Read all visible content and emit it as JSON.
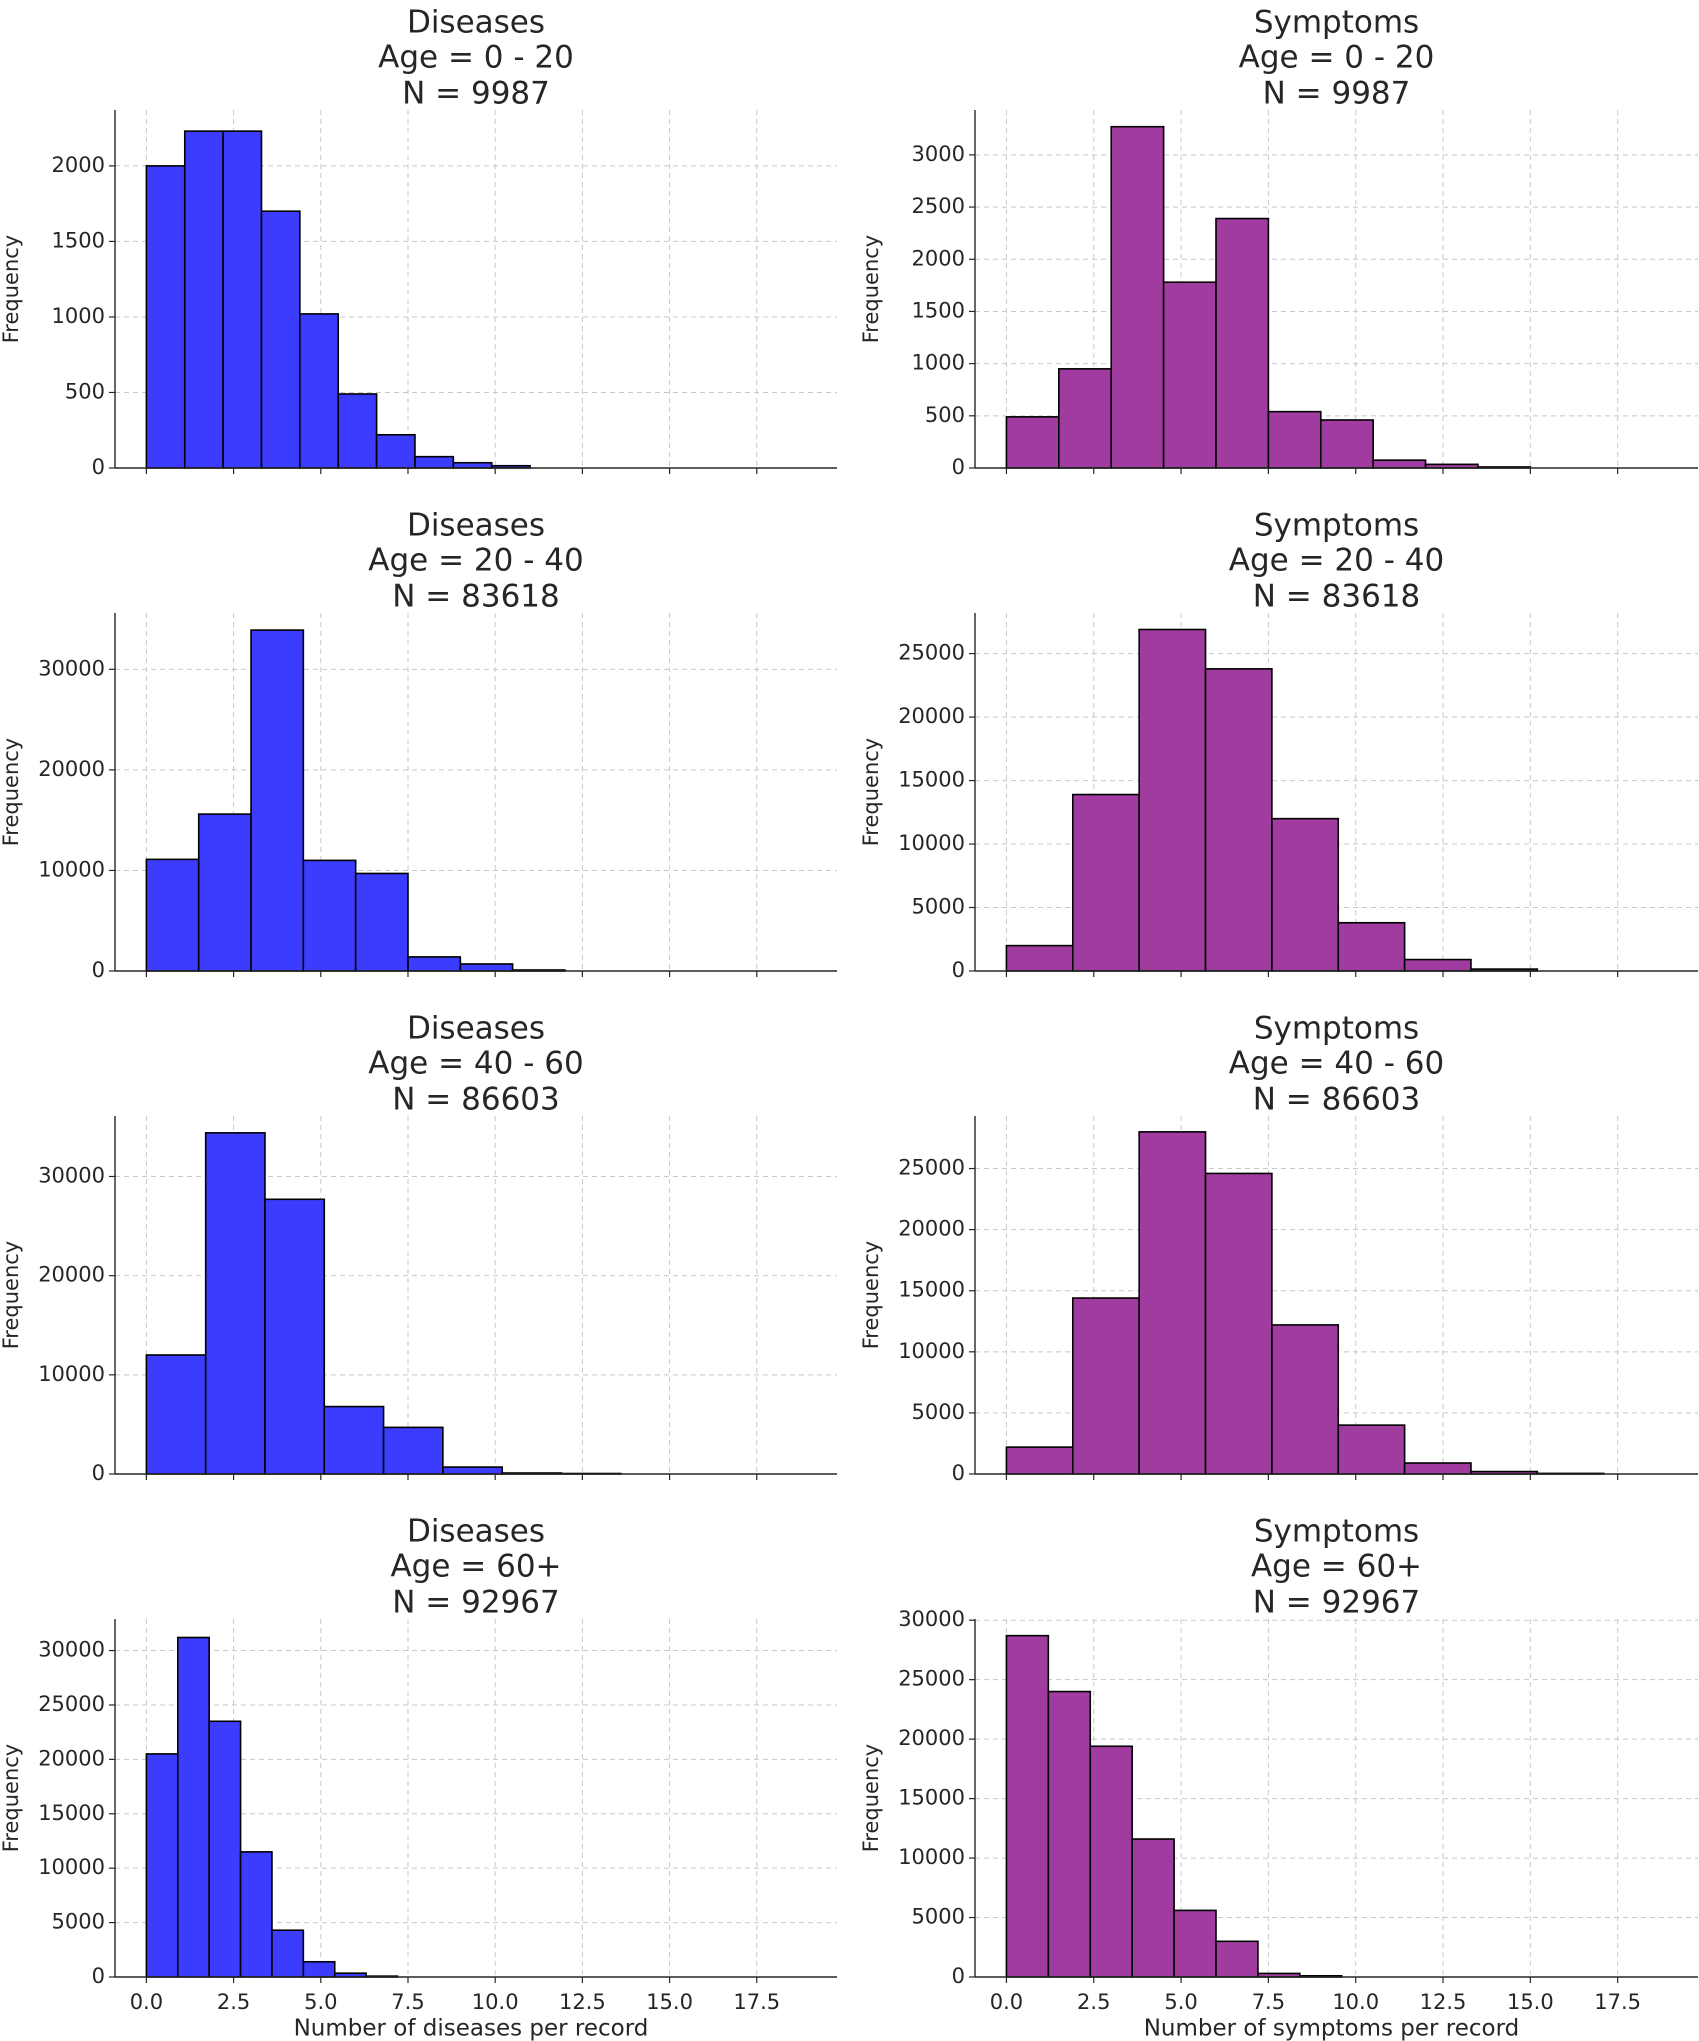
{
  "chart_data": [
    {
      "type": "bar",
      "title": [
        "Diseases",
        "Age = 0 - 20",
        "N = 9987"
      ],
      "xlabel": "",
      "ylabel": "Frequency",
      "color": "#3c3cff",
      "bin_edges": [
        0,
        1.1,
        2.2,
        3.3,
        4.4,
        5.5,
        6.6,
        7.7,
        8.8,
        9.9,
        11.0
      ],
      "values": [
        2000,
        2230,
        2230,
        1700,
        1020,
        490,
        220,
        75,
        35,
        15
      ],
      "xlim": [
        -0.9,
        19.8
      ],
      "ylim": [
        0,
        2370
      ],
      "yticks": [
        0,
        500,
        1000,
        1500,
        2000
      ],
      "xticks": [
        0.0,
        2.5,
        5.0,
        7.5,
        10.0,
        12.5,
        15.0,
        17.5
      ],
      "show_xticklabels": false,
      "grid": true
    },
    {
      "type": "bar",
      "title": [
        "Symptoms",
        "Age = 0 - 20",
        "N = 9987"
      ],
      "xlabel": "",
      "ylabel": "Frequency",
      "color": "#a03ca0",
      "bin_edges": [
        0,
        1.5,
        3.0,
        4.5,
        6.0,
        7.5,
        9.0,
        10.5,
        12.0,
        13.5,
        15.0
      ],
      "values": [
        490,
        950,
        3270,
        1780,
        2390,
        540,
        460,
        75,
        35,
        10
      ],
      "xlim": [
        -0.9,
        19.8
      ],
      "ylim": [
        0,
        3430
      ],
      "yticks": [
        0,
        500,
        1000,
        1500,
        2000,
        2500,
        3000
      ],
      "xticks": [
        0.0,
        2.5,
        5.0,
        7.5,
        10.0,
        12.5,
        15.0,
        17.5
      ],
      "show_xticklabels": false,
      "grid": true
    },
    {
      "type": "bar",
      "title": [
        "Diseases",
        "Age = 20 - 40",
        "N = 83618"
      ],
      "xlabel": "",
      "ylabel": "Frequency",
      "color": "#3c3cff",
      "bin_edges": [
        0,
        1.5,
        3.0,
        4.5,
        6.0,
        7.5,
        9.0,
        10.5,
        12.0
      ],
      "values": [
        11100,
        15600,
        33900,
        11000,
        9700,
        1400,
        700,
        100
      ],
      "xlim": [
        -0.9,
        19.8
      ],
      "ylim": [
        0,
        35600
      ],
      "yticks": [
        0,
        10000,
        20000,
        30000
      ],
      "xticks": [
        0.0,
        2.5,
        5.0,
        7.5,
        10.0,
        12.5,
        15.0,
        17.5
      ],
      "show_xticklabels": false,
      "grid": true
    },
    {
      "type": "bar",
      "title": [
        "Symptoms",
        "Age = 20 - 40",
        "N = 83618"
      ],
      "xlabel": "",
      "ylabel": "Frequency",
      "color": "#a03ca0",
      "bin_edges": [
        0,
        1.9,
        3.8,
        5.7,
        7.6,
        9.5,
        11.4,
        13.3,
        15.2
      ],
      "values": [
        2000,
        13900,
        26900,
        23800,
        12000,
        3800,
        900,
        150
      ],
      "xlim": [
        -0.9,
        19.8
      ],
      "ylim": [
        0,
        28200
      ],
      "yticks": [
        0,
        5000,
        10000,
        15000,
        20000,
        25000
      ],
      "xticks": [
        0.0,
        2.5,
        5.0,
        7.5,
        10.0,
        12.5,
        15.0,
        17.5
      ],
      "show_xticklabels": false,
      "grid": true
    },
    {
      "type": "bar",
      "title": [
        "Diseases",
        "Age = 40 - 60",
        "N = 86603"
      ],
      "xlabel": "",
      "ylabel": "Frequency",
      "color": "#3c3cff",
      "bin_edges": [
        0,
        1.7,
        3.4,
        5.1,
        6.8,
        8.5,
        10.2,
        11.9,
        13.6
      ],
      "values": [
        12000,
        34400,
        27700,
        6800,
        4700,
        700,
        100,
        50
      ],
      "xlim": [
        -0.9,
        19.8
      ],
      "ylim": [
        0,
        36100
      ],
      "yticks": [
        0,
        10000,
        20000,
        30000
      ],
      "xticks": [
        0.0,
        2.5,
        5.0,
        7.5,
        10.0,
        12.5,
        15.0,
        17.5
      ],
      "show_xticklabels": false,
      "grid": true
    },
    {
      "type": "bar",
      "title": [
        "Symptoms",
        "Age = 40 - 60",
        "N = 86603"
      ],
      "xlabel": "",
      "ylabel": "Frequency",
      "color": "#a03ca0",
      "bin_edges": [
        0,
        1.9,
        3.8,
        5.7,
        7.6,
        9.5,
        11.4,
        13.3,
        15.2,
        17.1
      ],
      "values": [
        2200,
        14400,
        28000,
        24600,
        12200,
        4000,
        900,
        200,
        50
      ],
      "xlim": [
        -0.9,
        19.8
      ],
      "ylim": [
        0,
        29300
      ],
      "yticks": [
        0,
        5000,
        10000,
        15000,
        20000,
        25000
      ],
      "xticks": [
        0.0,
        2.5,
        5.0,
        7.5,
        10.0,
        12.5,
        15.0,
        17.5
      ],
      "show_xticklabels": false,
      "grid": true
    },
    {
      "type": "bar",
      "title": [
        "Diseases",
        "Age = 60+",
        "N = 92967"
      ],
      "xlabel": "Number of diseases per record",
      "ylabel": "Frequency",
      "color": "#3c3cff",
      "bin_edges": [
        0,
        0.9,
        1.8,
        2.7,
        3.6,
        4.5,
        5.4,
        6.3,
        7.2
      ],
      "values": [
        20500,
        31200,
        23500,
        11500,
        4300,
        1400,
        350,
        80
      ],
      "xlim": [
        -0.9,
        19.8
      ],
      "ylim": [
        0,
        32900
      ],
      "yticks": [
        0,
        5000,
        10000,
        15000,
        20000,
        25000,
        30000
      ],
      "xticks": [
        0.0,
        2.5,
        5.0,
        7.5,
        10.0,
        12.5,
        15.0,
        17.5
      ],
      "show_xticklabels": true,
      "grid": true
    },
    {
      "type": "bar",
      "title": [
        "Symptoms",
        "Age = 60+",
        "N = 92967"
      ],
      "xlabel": "Number of symptoms per record",
      "ylabel": "Frequency",
      "color": "#a03ca0",
      "bin_edges": [
        0,
        1.2,
        2.4,
        3.6,
        4.8,
        6.0,
        7.2,
        8.4,
        9.6
      ],
      "values": [
        28700,
        24000,
        19400,
        11600,
        5600,
        3000,
        300,
        100
      ],
      "xlim": [
        -0.9,
        19.8
      ],
      "ylim": [
        0,
        30100
      ],
      "yticks": [
        0,
        5000,
        10000,
        15000,
        20000,
        25000,
        30000
      ],
      "xticks": [
        0.0,
        2.5,
        5.0,
        7.5,
        10.0,
        12.5,
        15.0,
        17.5
      ],
      "show_xticklabels": true,
      "grid": true
    }
  ]
}
